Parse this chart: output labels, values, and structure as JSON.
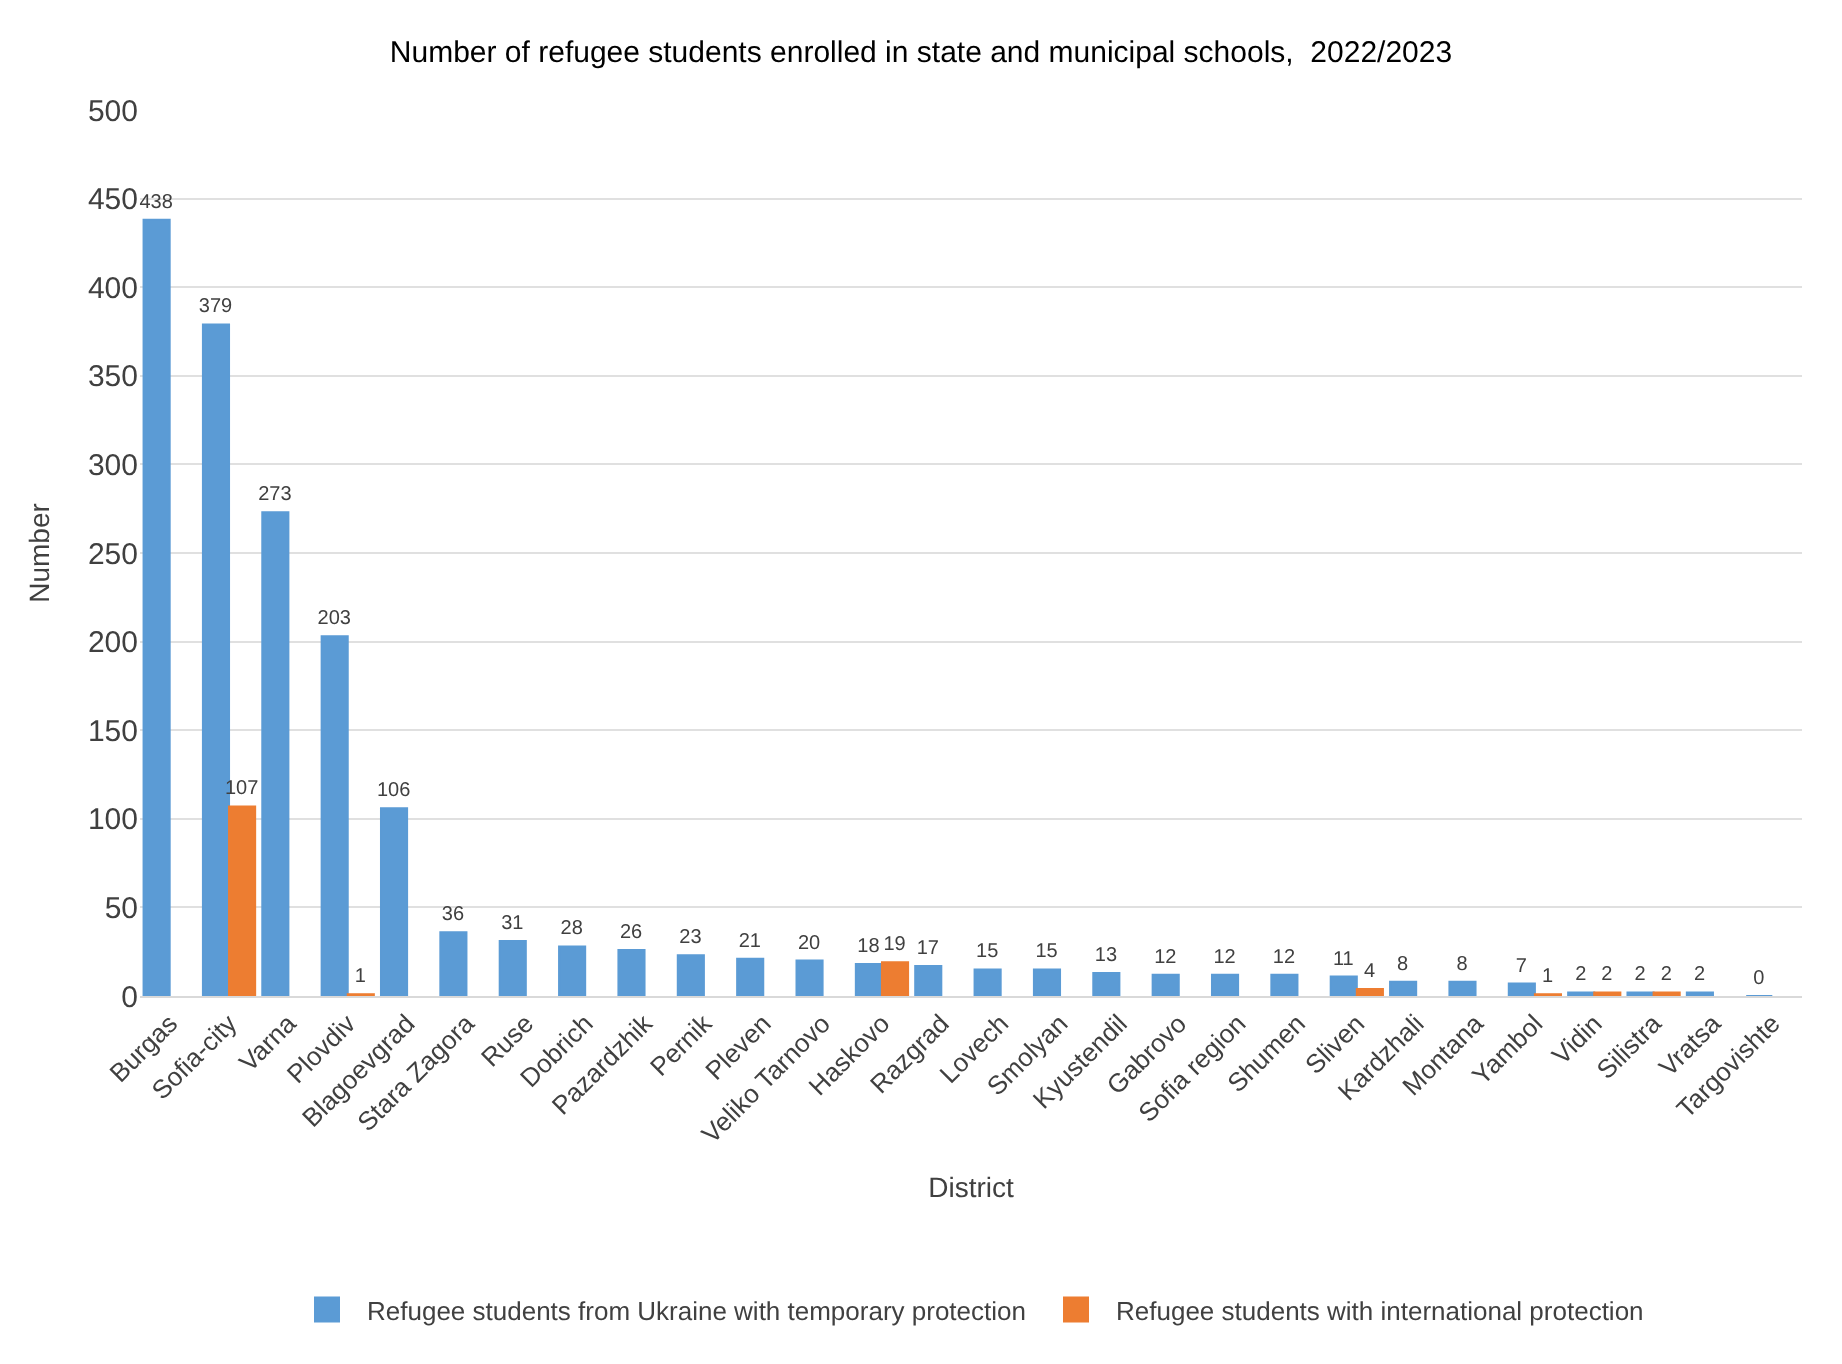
{
  "chart_data": {
    "type": "bar",
    "title": "Number of refugee students enrolled in state and municipal schools,  2022/2023",
    "xlabel": "District",
    "ylabel": "Number",
    "categories": [
      "Burgas",
      "Sofia-city",
      "Varna",
      "Plovdiv",
      "Blagoevgrad",
      "Stara Zagora",
      "Ruse",
      "Dobrich",
      "Pazardzhik",
      "Pernik",
      "Pleven",
      "Veliko Tarnovo",
      "Haskovo",
      "Razgrad",
      "Lovech",
      "Smolyan",
      "Kyustendil",
      "Gabrovo",
      "Sofia region",
      "Shumen",
      "Sliven",
      "Kardzhali",
      "Montana",
      "Yambol",
      "Vidin",
      "Silistra",
      "Vratsa",
      "Targovishte"
    ],
    "series": [
      {
        "name": "Refugee students from Ukraine with temporary protection",
        "color": "#5b9bd5",
        "values": [
          438,
          379,
          273,
          203,
          106,
          36,
          31,
          28,
          26,
          23,
          21,
          20,
          18,
          17,
          15,
          15,
          13,
          12,
          12,
          12,
          11,
          8,
          8,
          7,
          2,
          2,
          2,
          0
        ],
        "value_labels": [
          "438",
          "379",
          "273",
          "203",
          "106",
          "36",
          "31",
          "28",
          "26",
          "23",
          "21",
          "20",
          "18",
          "17",
          "15",
          "15",
          "13",
          "12",
          "12",
          "12",
          "11",
          "8",
          "8",
          "7",
          "2",
          "2",
          "2",
          "0"
        ]
      },
      {
        "name": "Refugee students with international protection",
        "color": "#ed7d31",
        "values": [
          null,
          107,
          null,
          1,
          null,
          null,
          null,
          null,
          null,
          null,
          null,
          null,
          19,
          null,
          null,
          null,
          null,
          null,
          null,
          null,
          4,
          null,
          null,
          1,
          2,
          2,
          null,
          null
        ],
        "value_labels": [
          null,
          "107",
          null,
          "1",
          null,
          null,
          null,
          null,
          null,
          null,
          null,
          null,
          "19",
          null,
          null,
          null,
          null,
          null,
          null,
          null,
          "4",
          null,
          null,
          "1",
          "2",
          "2",
          null,
          null
        ]
      }
    ],
    "ylim": [
      0,
      500
    ],
    "yticks": [
      0,
      50,
      100,
      150,
      200,
      250,
      300,
      350,
      400,
      450,
      500
    ],
    "grid": "y",
    "legend": "bottom"
  }
}
